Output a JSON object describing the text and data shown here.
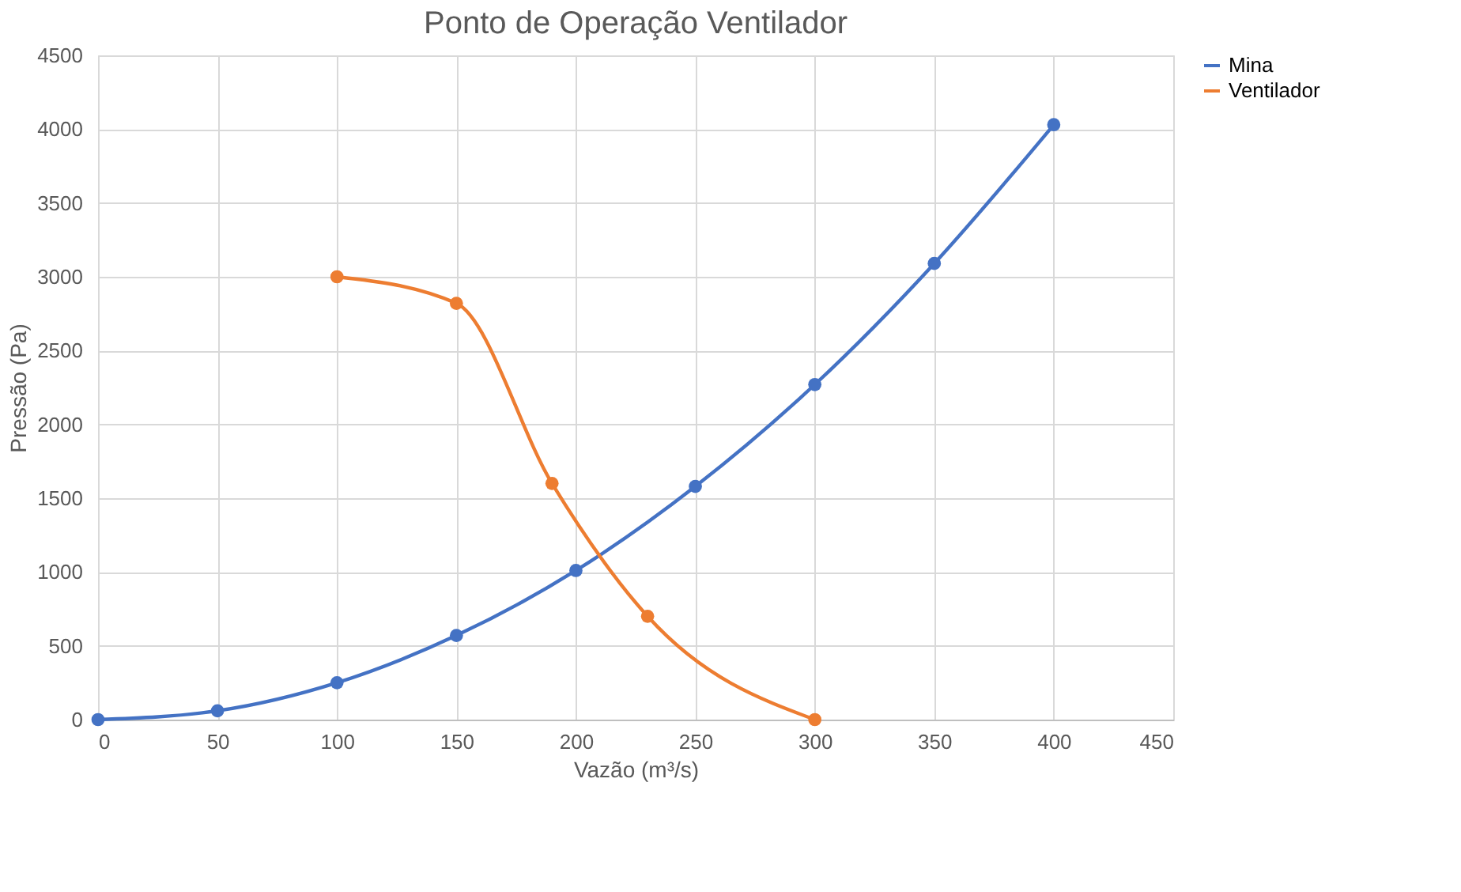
{
  "chart_data": {
    "type": "line",
    "title": "Ponto de Operação Ventilador",
    "xlabel": "Vazão (m³/s)",
    "ylabel": "Pressão (Pa)",
    "xlim": [
      0,
      450
    ],
    "xticks": [
      0,
      50,
      100,
      150,
      200,
      250,
      300,
      350,
      400,
      450
    ],
    "ylim": [
      0,
      4500
    ],
    "yticks": [
      0,
      500,
      1000,
      1500,
      2000,
      2500,
      3000,
      3500,
      4000,
      4500
    ],
    "grid": true,
    "legend": "right",
    "marker": "circle",
    "line_style": "solid",
    "series": [
      {
        "name": "Mina",
        "color": "#4472c4",
        "x": [
          0,
          50,
          100,
          150,
          200,
          250,
          300,
          350,
          400
        ],
        "values": [
          0,
          60,
          250,
          570,
          1010,
          1580,
          2270,
          3090,
          4030
        ]
      },
      {
        "name": "Ventilador",
        "color": "#ed7d31",
        "x": [
          100,
          150,
          190,
          230,
          300
        ],
        "values": [
          3000,
          2820,
          1600,
          700,
          0
        ]
      }
    ]
  }
}
